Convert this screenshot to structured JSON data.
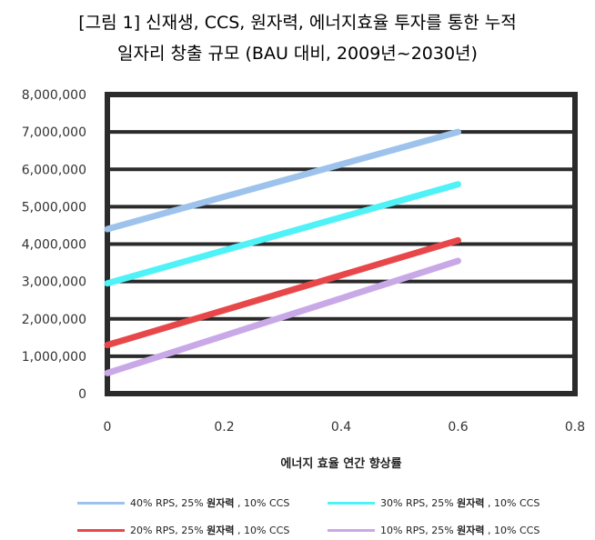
{
  "chart_data": {
    "type": "line",
    "title_line1": "[그림 1] 신재생, CCS, 원자력, 에너지효율 투자를 통한 누적",
    "title_line2": "일자리 창출 규모 (BAU 대비, 2009년~2030년)",
    "xlabel": "에너지 효율 연간 향상률",
    "ylabel": "",
    "xlim": [
      0,
      0.8
    ],
    "ylim": [
      0,
      8000000
    ],
    "x_ticks": [
      "0",
      "0.2",
      "0.4",
      "0.6",
      "0.8"
    ],
    "y_ticks": [
      "0",
      "1,000,000",
      "2,000,000",
      "3,000,000",
      "4,000,000",
      "5,000,000",
      "6,000,000",
      "7,000,000",
      "8,000,000"
    ],
    "grid": true,
    "legend_position": "bottom",
    "series": [
      {
        "name": "40% RPS, 25% 원자력 , 10% CCS",
        "name_pre": "40% RPS, 25% ",
        "name_bold": "원자력",
        "name_post": " , 10% CCS",
        "color": "#9dc3ec",
        "x": [
          0,
          0.6
        ],
        "values": [
          4400000,
          7000000
        ]
      },
      {
        "name": "30% RPS, 25% 원자력 , 10% CCS",
        "name_pre": "30% RPS, 25% ",
        "name_bold": "원자력",
        "name_post": " , 10% CCS",
        "color": "#4ff2f7",
        "x": [
          0,
          0.6
        ],
        "values": [
          2950000,
          5600000
        ]
      },
      {
        "name": "20% RPS, 25% 원자력 , 10% CCS",
        "name_pre": "20% RPS, 25% ",
        "name_bold": "원자력",
        "name_post": " , 10% CCS",
        "color": "#e8474a",
        "x": [
          0,
          0.6
        ],
        "values": [
          1300000,
          4100000
        ]
      },
      {
        "name": "10% RPS, 25% 원자력 , 10% CCS",
        "name_pre": "10% RPS, 25% ",
        "name_bold": "원자력",
        "name_post": " , 10% CCS",
        "color": "#c9a8e8",
        "x": [
          0,
          0.6
        ],
        "values": [
          550000,
          3550000
        ]
      }
    ]
  }
}
